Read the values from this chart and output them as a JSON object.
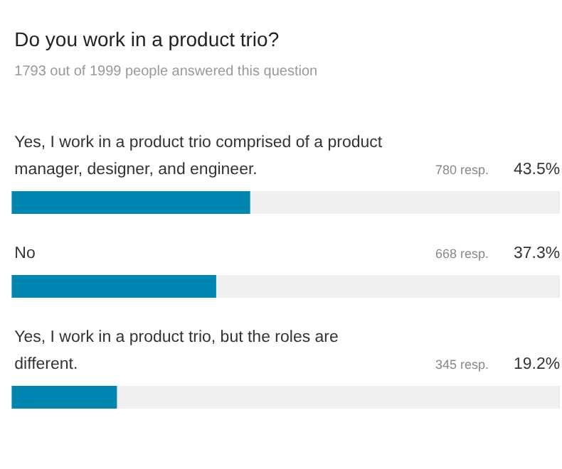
{
  "chart_data": {
    "type": "bar",
    "orientation": "horizontal",
    "title": "Do you work in a product trio?",
    "subtitle": "1793 out of 1999 people answered this question",
    "categories": [
      "Yes, I work in a product trio comprised of a product manager, designer, and engineer.",
      "No",
      "Yes, I work in a product trio, but the roles are different."
    ],
    "values": [
      43.5,
      37.3,
      19.2
    ],
    "color": "#0086b0",
    "value_labels": [
      "43.5%",
      "37.3%",
      "19.2%"
    ],
    "annotations": [
      "780 resp.",
      "668 resp.",
      "345 resp."
    ],
    "xlim": [
      0,
      100
    ],
    "tick_labels": false
  }
}
